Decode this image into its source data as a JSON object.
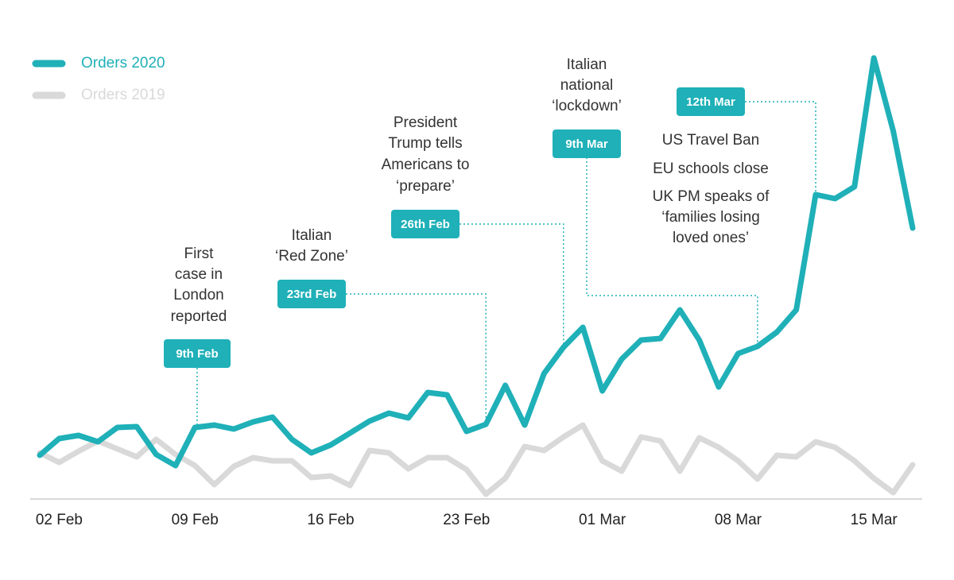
{
  "chart_data": {
    "type": "line",
    "categories": [
      null,
      "02 Feb",
      null,
      null,
      null,
      null,
      null,
      null,
      "09 Feb",
      null,
      null,
      null,
      null,
      null,
      null,
      "16 Feb",
      null,
      null,
      null,
      null,
      null,
      null,
      "23 Feb",
      null,
      null,
      null,
      null,
      null,
      null,
      "01 Mar",
      null,
      null,
      null,
      null,
      null,
      null,
      "08 Mar",
      null,
      null,
      null,
      null,
      null,
      null,
      "15 Mar",
      null,
      null
    ],
    "series": [
      {
        "name": "Orders 2020",
        "color": "#1fb0b8",
        "values": [
          52,
          73,
          77,
          69,
          87,
          88,
          53,
          39,
          87,
          90,
          85,
          94,
          100,
          72,
          55,
          65,
          80,
          95,
          105,
          99,
          131,
          128,
          82,
          91,
          140,
          90,
          155,
          188,
          213,
          133,
          173,
          197,
          199,
          235,
          197,
          138,
          180,
          189,
          207,
          235,
          380,
          375,
          390,
          552,
          460,
          338
        ]
      },
      {
        "name": "Orders 2019",
        "color": "#d9d9d9",
        "values": [
          55,
          43,
          57,
          70,
          60,
          50,
          72,
          53,
          39,
          15,
          38,
          49,
          45,
          45,
          24,
          26,
          14,
          58,
          55,
          35,
          49,
          49,
          34,
          3,
          23,
          63,
          58,
          75,
          90,
          45,
          32,
          75,
          70,
          32,
          74,
          62,
          45,
          22,
          52,
          50,
          69,
          62,
          45,
          23,
          5,
          40
        ]
      }
    ],
    "ylim": [
      0,
      560
    ],
    "annotations": [
      {
        "date": "9th Feb",
        "text": [
          "First",
          "case in",
          "London",
          "reported"
        ]
      },
      {
        "date": "23rd Feb",
        "text": [
          "Italian",
          "‘Red Zone’"
        ]
      },
      {
        "date": "26th Feb",
        "text": [
          "President",
          "Trump tells",
          "Americans to",
          "‘prepare’"
        ]
      },
      {
        "date": "9th Mar",
        "text": [
          "Italian",
          "national",
          "‘lockdown’"
        ]
      },
      {
        "date": "12th Mar",
        "text": [
          "US Travel Ban",
          "EU schools close",
          "UK PM speaks of",
          "‘families losing",
          "loved ones’"
        ]
      }
    ]
  }
}
